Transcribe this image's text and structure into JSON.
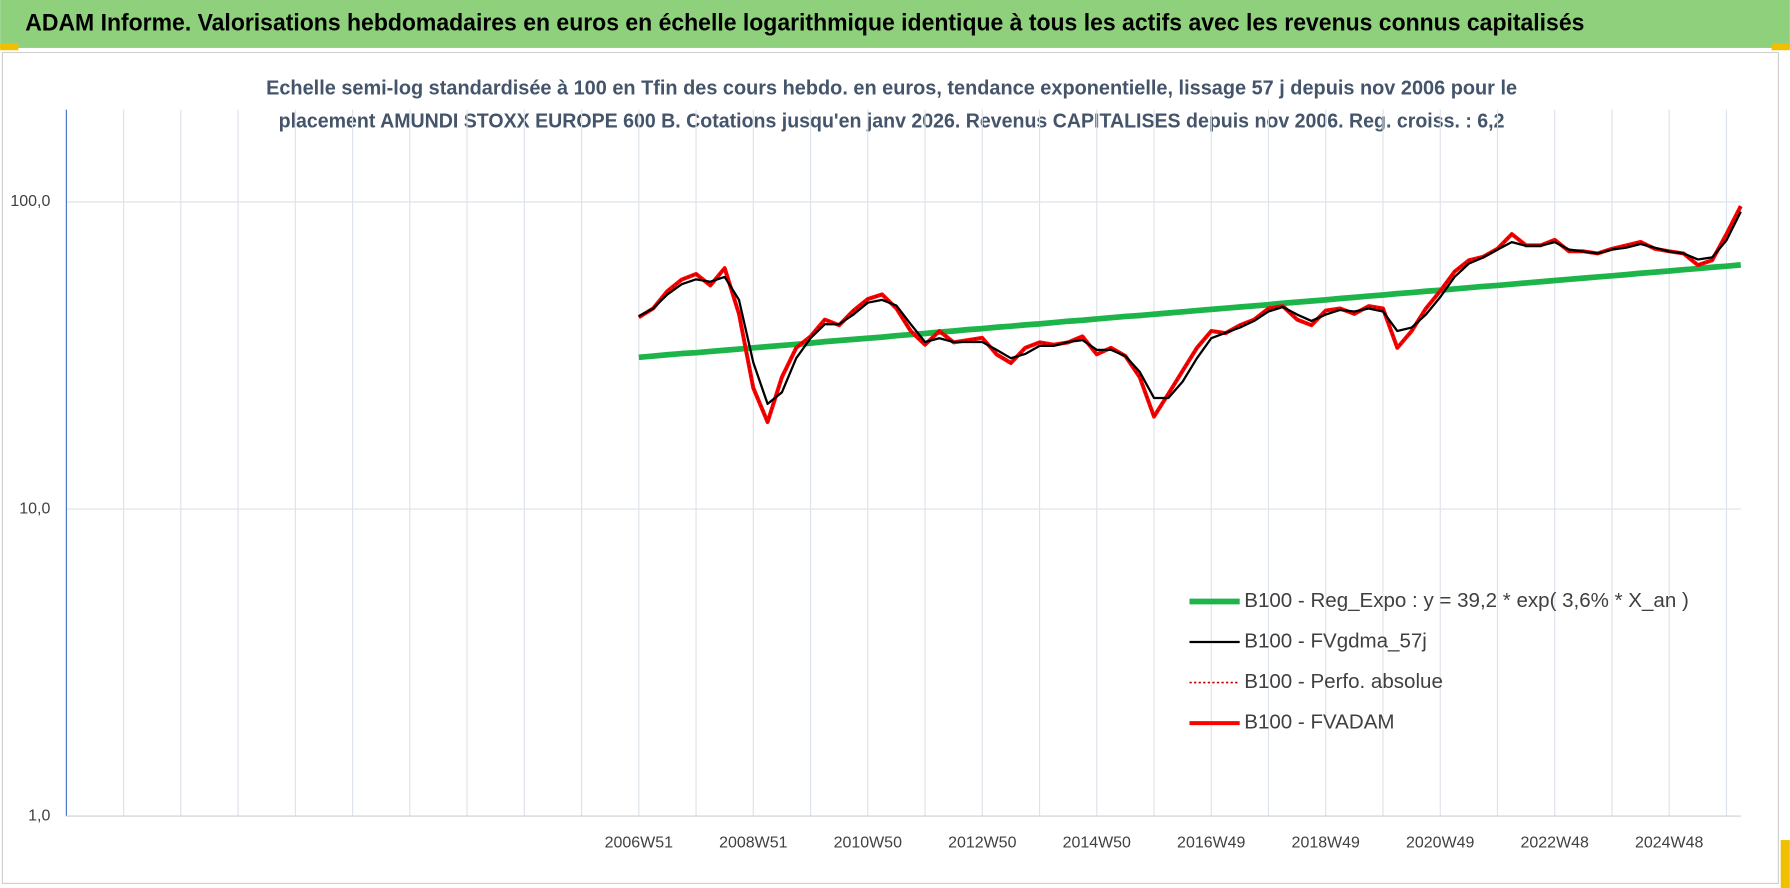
{
  "header": {
    "title": "ADAM Informe. Valorisations hebdomadaires en euros en échelle logarithmique identique à tous les actifs avec les revenus connus capitalisés"
  },
  "chart_data": {
    "type": "line",
    "title": [
      "Echelle semi-log standardisée à 100 en Tfin des cours hebdo. en euros, tendance exponentielle, lissage 57 j depuis nov 2006 pour le",
      "placement AMUNDI STOXX EUROPE 600 B. Cotations jusqu'en janv 2026.  Revenus CAPITALISES depuis nov 2006. Reg. croiss. : 6,2"
    ],
    "log_scale": true,
    "grid": true,
    "legend": "lower right",
    "ylim": [
      1,
      200
    ],
    "yticks": [
      {
        "value": 1,
        "label": "1,0"
      },
      {
        "value": 10,
        "label": "10,0"
      },
      {
        "value": 100,
        "label": "100,0"
      }
    ],
    "categories": [
      null,
      null,
      null,
      null,
      null,
      null,
      null,
      null,
      null,
      null,
      null,
      null,
      null,
      null,
      null,
      null,
      null,
      null,
      null,
      null,
      null,
      null,
      null,
      null,
      null,
      null,
      null,
      null,
      null,
      null,
      null,
      null,
      null,
      null,
      null,
      null,
      null,
      null,
      null,
      null,
      "2006W51",
      null,
      null,
      null,
      null,
      null,
      null,
      null,
      "2008W51",
      null,
      null,
      null,
      null,
      null,
      null,
      null,
      "2010W50",
      null,
      null,
      null,
      null,
      null,
      null,
      null,
      "2012W50",
      null,
      null,
      null,
      null,
      null,
      null,
      null,
      "2014W50",
      null,
      null,
      null,
      null,
      null,
      null,
      null,
      "2016W49",
      null,
      null,
      null,
      null,
      null,
      null,
      null,
      "2018W49",
      null,
      null,
      null,
      null,
      null,
      null,
      null,
      "2020W49",
      null,
      null,
      null,
      null,
      null,
      null,
      null,
      "2022W48",
      null,
      null,
      null,
      null,
      null,
      null,
      null,
      "2024W48",
      null,
      null,
      null,
      null,
      null
    ],
    "series": [
      {
        "name": "B100 - Reg_Expo : y = 39,2 * exp( 3,6% *  X_an )",
        "color": "#1db54a",
        "linewidth": 5,
        "values": [
          null,
          null,
          null,
          null,
          null,
          null,
          null,
          null,
          null,
          null,
          null,
          null,
          null,
          null,
          null,
          null,
          null,
          null,
          null,
          null,
          null,
          null,
          null,
          null,
          null,
          null,
          null,
          null,
          null,
          null,
          null,
          null,
          null,
          null,
          null,
          null,
          null,
          null,
          null,
          null,
          31.2,
          31.5,
          31.8,
          32.1,
          32.3,
          32.6,
          32.9,
          33.2,
          33.5,
          33.8,
          34.1,
          34.4,
          34.7,
          35.1,
          35.4,
          35.7,
          36.0,
          36.3,
          36.7,
          37.0,
          37.3,
          37.7,
          38.0,
          38.4,
          38.7,
          39.1,
          39.4,
          39.8,
          40.1,
          40.5,
          40.9,
          41.2,
          41.6,
          42.0,
          42.4,
          42.7,
          43.1,
          43.5,
          43.9,
          44.3,
          44.7,
          45.1,
          45.5,
          45.9,
          46.3,
          46.8,
          47.2,
          47.6,
          48.0,
          48.5,
          48.9,
          49.4,
          49.8,
          50.3,
          50.7,
          51.2,
          51.6,
          52.1,
          52.6,
          53.1,
          53.5,
          54.0,
          54.5,
          55.0,
          55.5,
          56.0,
          56.5,
          57.0,
          57.5,
          58.0,
          58.6,
          59.1,
          59.6,
          60.2,
          60.7,
          61.3,
          61.8,
          62.4
        ]
      },
      {
        "name": "B100 - FVgdma_57j",
        "color": "#000000",
        "linewidth": 2,
        "values": [
          null,
          null,
          null,
          null,
          null,
          null,
          null,
          null,
          null,
          null,
          null,
          null,
          null,
          null,
          null,
          null,
          null,
          null,
          null,
          null,
          null,
          null,
          null,
          null,
          null,
          null,
          null,
          null,
          null,
          null,
          null,
          null,
          null,
          null,
          null,
          null,
          null,
          null,
          null,
          null,
          42.5,
          45,
          50,
          54,
          56,
          55,
          57,
          48,
          30,
          22,
          24,
          31,
          36,
          40,
          40,
          43,
          47,
          48,
          46,
          40,
          35,
          36,
          35,
          35,
          35,
          33,
          31,
          32,
          34,
          34,
          35,
          35.5,
          33,
          33,
          31.5,
          28,
          23,
          23,
          26,
          31,
          36,
          37.5,
          39,
          41,
          44,
          45.5,
          43,
          41,
          43,
          44.5,
          44,
          45,
          44,
          38,
          39,
          43,
          49,
          57,
          63,
          66,
          70,
          74,
          72,
          72,
          74,
          70,
          69,
          68,
          70,
          71,
          73,
          71,
          69,
          68,
          65,
          66,
          75,
          93
        ]
      },
      {
        "name": "B100 - Perfo. absolue",
        "color": "#c00000",
        "linewidth": 1.5,
        "linestyle": "dotted",
        "values": [
          null,
          null,
          null,
          null,
          null,
          null,
          null,
          null,
          null,
          null,
          null,
          null,
          null,
          null,
          null,
          null,
          null,
          null,
          null,
          null,
          null,
          null,
          null,
          null,
          null,
          null,
          null,
          null,
          null,
          null,
          null,
          null,
          null,
          null,
          null,
          null,
          null,
          null,
          null,
          null,
          42.1,
          45,
          51.3,
          55.9,
          58.3,
          53.5,
          60.9,
          43.2,
          24.8,
          19.2,
          26.9,
          33.5,
          36.5,
          41.4,
          39.7,
          44.3,
          48.3,
          50,
          45,
          38,
          34.3,
          38,
          34.9,
          35.5,
          36.1,
          31.9,
          29.9,
          33.5,
          34.9,
          34.3,
          34.9,
          36.5,
          31.9,
          33.5,
          31.5,
          26.9,
          20,
          23.7,
          28.2,
          33.5,
          38,
          37.4,
          39.7,
          41.4,
          45,
          45.8,
          41.4,
          39.7,
          44.3,
          45,
          43.2,
          45.8,
          45,
          33.5,
          38,
          45,
          51.3,
          59.3,
          64.6,
          66.3,
          70.4,
          78.6,
          72.2,
          72.2,
          75.3,
          69.1,
          69.1,
          68,
          70.4,
          72.2,
          74.1,
          70.4,
          69.1,
          68,
          62.3,
          64.6,
          78.6,
          97
        ]
      },
      {
        "name": "B100 - FVADAM",
        "color": "#ff0000",
        "linewidth": 3.5,
        "values": [
          null,
          null,
          null,
          null,
          null,
          null,
          null,
          null,
          null,
          null,
          null,
          null,
          null,
          null,
          null,
          null,
          null,
          null,
          null,
          null,
          null,
          null,
          null,
          null,
          null,
          null,
          null,
          null,
          null,
          null,
          null,
          null,
          null,
          null,
          null,
          null,
          null,
          null,
          null,
          null,
          42.1,
          45,
          51.3,
          55.9,
          58.3,
          53.5,
          60.9,
          43.2,
          24.8,
          19.2,
          26.9,
          33.5,
          36.5,
          41.4,
          39.7,
          44.3,
          48.3,
          50,
          45,
          38,
          34.3,
          38,
          34.9,
          35.5,
          36.1,
          31.9,
          29.9,
          33.5,
          34.9,
          34.3,
          34.9,
          36.5,
          31.9,
          33.5,
          31.5,
          26.9,
          20,
          23.7,
          28.2,
          33.5,
          38,
          37.4,
          39.7,
          41.4,
          45,
          45.8,
          41.4,
          39.7,
          44.3,
          45,
          43.2,
          45.8,
          45,
          33.5,
          38,
          45,
          51.3,
          59.3,
          64.6,
          66.3,
          70.4,
          78.6,
          72.2,
          72.2,
          75.3,
          69.1,
          69.1,
          68,
          70.4,
          72.2,
          74.1,
          70.4,
          69.1,
          68,
          62.3,
          64.6,
          78.6,
          97
        ]
      }
    ]
  }
}
